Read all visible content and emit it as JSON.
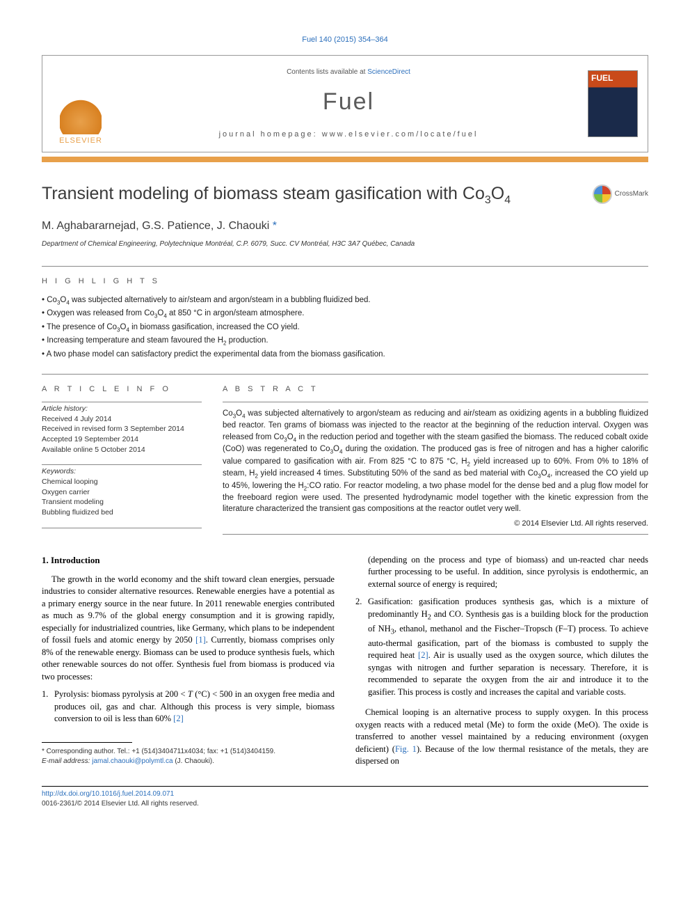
{
  "citation": "Fuel 140 (2015) 354–364",
  "header": {
    "contents_prefix": "Contents lists available at ",
    "contents_link_text": "ScienceDirect",
    "journal_name": "Fuel",
    "homepage_prefix": "journal homepage: ",
    "homepage_url": "www.elsevier.com/locate/fuel",
    "publisher_logo_text": "ELSEVIER",
    "cover_label": "FUEL"
  },
  "colors": {
    "link": "#2a6ebb",
    "accent_bar": "#e8a04a",
    "elsevier_orange": "#e8a04a",
    "cover_top": "#c94a1a",
    "cover_bottom": "#1a2a4a",
    "text_main": "#000000",
    "text_muted": "#555555",
    "rule": "#888888"
  },
  "crossmark": {
    "label": "CrossMark"
  },
  "title_html": "Transient modeling of biomass steam gasification with Co<sub>3</sub>O<sub>4</sub>",
  "authors_html": "M. Aghabararnejad, G.S. Patience, J. Chaouki <span class=\"corresp\">*</span>",
  "affiliation": "Department of Chemical Engineering, Polytechnique Montréal, C.P. 6079, Succ. CV Montréal, H3C 3A7 Québec, Canada",
  "section_labels": {
    "highlights": "H I G H L I G H T S",
    "article_info": "A R T I C L E   I N F O",
    "abstract": "A B S T R A C T"
  },
  "highlights": [
    "Co<sub>3</sub>O<sub>4</sub> was subjected alternatively to air/steam and argon/steam in a bubbling fluidized bed.",
    "Oxygen was released from Co<sub>3</sub>O<sub>4</sub> at 850 °C in argon/steam atmosphere.",
    "The presence of Co<sub>3</sub>O<sub>4</sub> in biomass gasification, increased the CO yield.",
    "Increasing temperature and steam favoured the H<sub>2</sub> production.",
    "A two phase model can satisfactory predict the experimental data from the biomass gasification."
  ],
  "article_info": {
    "history_head": "Article history:",
    "history": [
      "Received 4 July 2014",
      "Received in revised form 3 September 2014",
      "Accepted 19 September 2014",
      "Available online 5 October 2014"
    ],
    "keywords_head": "Keywords:",
    "keywords": [
      "Chemical looping",
      "Oxygen carrier",
      "Transient modeling",
      "Bubbling fluidized bed"
    ]
  },
  "abstract_html": "Co<sub>3</sub>O<sub>4</sub> was subjected alternatively to argon/steam as reducing and air/steam as oxidizing agents in a bubbling fluidized bed reactor. Ten grams of biomass was injected to the reactor at the beginning of the reduction interval. Oxygen was released from Co<sub>3</sub>O<sub>4</sub> in the reduction period and together with the steam gasified the biomass. The reduced cobalt oxide (CoO) was regenerated to Co<sub>3</sub>O<sub>4</sub> during the oxidation. The produced gas is free of nitrogen and has a higher calorific value compared to gasification with air. From 825 °C to 875 °C, H<sub>2</sub> yield increased up to 60%. From 0% to 18% of steam, H<sub>2</sub> yield increased 4 times. Substituting 50% of the sand as bed material with Co<sub>3</sub>O<sub>4</sub>, increased the CO yield up to 45%, lowering the H<sub>2</sub>:CO ratio. For reactor modeling, a two phase model for the dense bed and a plug flow model for the freeboard region were used. The presented hydrodynamic model together with the kinetic expression from the literature characterized the transient gas compositions at the reactor outlet very well.",
  "copyright": "© 2014 Elsevier Ltd. All rights reserved.",
  "body": {
    "heading": "1. Introduction",
    "col1": {
      "p1_html": "The growth in the world economy and the shift toward clean energies, persuade industries to consider alternative resources. Renewable energies have a potential as a primary energy source in the near future. In 2011 renewable energies contributed as much as 9.7% of the global energy consumption and it is growing rapidly, especially for industrialized countries, like Germany, which plans to be independent of fossil fuels and atomic energy by 2050 <span class=\"ref-link\">[1]</span>. Currently, biomass comprises only 8% of the renewable energy. Biomass can be used to produce synthesis fuels, which other renewable sources do not offer. Synthesis fuel from biomass is produced via two processes:",
      "item1_html": "Pyrolysis: biomass pyrolysis at 200 &lt; <i>T</i> (°C) &lt; 500 in an oxygen free media and produces oil, gas and char. Although this process is very simple, biomass conversion to oil is less than 60% <span class=\"ref-link\">[2]</span>"
    },
    "col2": {
      "cont1_html": "(depending on the process and type of biomass) and un-reacted char needs further processing to be useful. In addition, since pyrolysis is endothermic, an external source of energy is required;",
      "item2_html": "Gasification: gasification produces synthesis gas, which is a mixture of predominantly H<sub>2</sub> and CO. Synthesis gas is a building block for the production of NH<sub>3</sub>, ethanol, methanol and the Fischer–Tropsch (F–T) process. To achieve auto-thermal gasification, part of the biomass is combusted to supply the required heat <span class=\"ref-link\">[2]</span>. Air is usually used as the oxygen source, which dilutes the syngas with nitrogen and further separation is necessary. Therefore, it is recommended to separate the oxygen from the air and introduce it to the gasifier. This process is costly and increases the capital and variable costs.",
      "p2_html": "Chemical looping is an alternative process to supply oxygen. In this process oxygen reacts with a reduced metal (Me) to form the oxide (MeO). The oxide is transferred to another vessel maintained by a reducing environment (oxygen deficient) (<span class=\"ref-link\">Fig. 1</span>). Because of the low thermal resistance of the metals, they are dispersed on"
    }
  },
  "footnotes": {
    "corresp_html": "* Corresponding author. Tel.: +1 (514)3404711x4034; fax: +1 (514)3404159.",
    "email_label": "E-mail address:",
    "email": "jamal.chaouki@polymtl.ca",
    "email_person": "(J. Chaouki)."
  },
  "doi": {
    "url": "http://dx.doi.org/10.1016/j.fuel.2014.09.071",
    "issn_line": "0016-2361/© 2014 Elsevier Ltd. All rights reserved."
  }
}
